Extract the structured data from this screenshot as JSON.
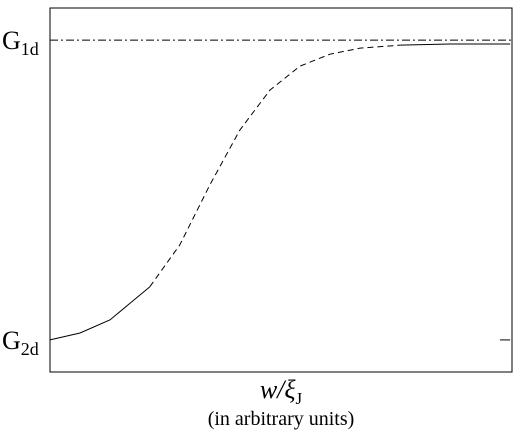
{
  "chart_data": {
    "type": "line",
    "xlim": [
      0,
      100
    ],
    "ylim": [
      -0.107,
      1.107
    ],
    "yticks": [
      {
        "value": 1,
        "label": "G",
        "sub": "1d"
      },
      {
        "value": 0,
        "label": "G",
        "sub": "2d"
      }
    ],
    "xlabel": {
      "main": "w/ξ",
      "sub": "J",
      "note": "(in arbitrary units)"
    },
    "reference_line": {
      "y": 1,
      "style": "dashdot",
      "color": "#000000"
    },
    "segments": [
      {
        "style": "solid",
        "color": "#000000",
        "x": [
          0,
          6.5,
          13,
          21.6
        ],
        "y": [
          0,
          0.023,
          0.067,
          0.177
        ]
      },
      {
        "style": "dashed",
        "color": "#000000",
        "x": [
          21.6,
          28.1,
          34.6,
          41.1,
          47.6,
          54.1,
          60.6,
          67.1,
          75.8
        ],
        "y": [
          0.177,
          0.317,
          0.517,
          0.7,
          0.833,
          0.913,
          0.953,
          0.973,
          0.983
        ]
      },
      {
        "style": "solid",
        "color": "#000000",
        "x": [
          75.8,
          86.6,
          99.6
        ],
        "y": [
          0.983,
          0.987,
          0.987
        ]
      },
      {
        "style": "solid",
        "color": "#000000",
        "x": [
          97.4,
          99.6
        ],
        "y": [
          0,
          0
        ]
      }
    ]
  }
}
